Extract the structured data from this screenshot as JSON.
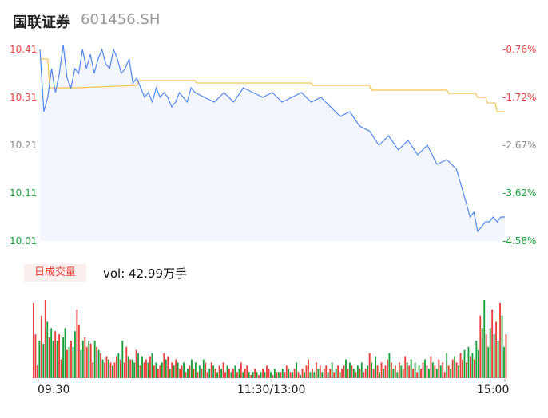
{
  "header": {
    "name": "国联证券",
    "code": "601456.SH"
  },
  "volume_tab": {
    "label": "日成交量"
  },
  "volume_readout": "vol: 42.99万手",
  "colors": {
    "up": "#e8413d",
    "down": "#1aa33d",
    "price_line": "#4f86ef",
    "avg_line": "#f3c34f",
    "neutral": "#8a8a8a"
  },
  "chart_data": [
    {
      "type": "line",
      "title": "",
      "x_tick_labels": [
        "09:30",
        "11:30/13:00",
        "15:00"
      ],
      "y_tick_labels": [
        "10.41",
        "10.31",
        "10.21",
        "10.11",
        "10.01"
      ],
      "y2_tick_labels": [
        "-0.76%",
        "-1.72%",
        "-2.67%",
        "-3.62%",
        "-4.58%"
      ],
      "ylim": [
        10.01,
        10.41
      ],
      "xlim": [
        0,
        240
      ],
      "series": [
        {
          "role": "price",
          "x": [
            0,
            2,
            4,
            6,
            8,
            10,
            12,
            14,
            16,
            18,
            20,
            22,
            24,
            26,
            28,
            30,
            32,
            34,
            36,
            38,
            40,
            42,
            44,
            46,
            48,
            50,
            52,
            54,
            56,
            58,
            60,
            62,
            64,
            66,
            68,
            70,
            72,
            74,
            76,
            78,
            80,
            85,
            90,
            95,
            100,
            105,
            110,
            115,
            120,
            125,
            130,
            135,
            140,
            145,
            150,
            155,
            160,
            165,
            170,
            175,
            180,
            185,
            190,
            195,
            200,
            205,
            210,
            215,
            220,
            222,
            224,
            226,
            228,
            230,
            232,
            234,
            236,
            238,
            240
          ],
          "values": [
            10.41,
            10.28,
            10.31,
            10.37,
            10.32,
            10.36,
            10.42,
            10.35,
            10.33,
            10.37,
            10.36,
            10.41,
            10.37,
            10.4,
            10.36,
            10.39,
            10.41,
            10.38,
            10.37,
            10.41,
            10.39,
            10.36,
            10.37,
            10.39,
            10.34,
            10.35,
            10.33,
            10.31,
            10.32,
            10.3,
            10.33,
            10.31,
            10.32,
            10.31,
            10.29,
            10.3,
            10.32,
            10.31,
            10.3,
            10.33,
            10.32,
            10.31,
            10.3,
            10.32,
            10.3,
            10.33,
            10.32,
            10.31,
            10.32,
            10.3,
            10.31,
            10.32,
            10.3,
            10.31,
            10.29,
            10.27,
            10.28,
            10.25,
            10.24,
            10.21,
            10.23,
            10.2,
            10.22,
            10.19,
            10.21,
            10.17,
            10.18,
            10.16,
            10.09,
            10.06,
            10.07,
            10.03,
            10.04,
            10.05,
            10.05,
            10.06,
            10.05,
            10.06,
            10.06
          ]
        },
        {
          "role": "average",
          "x": [
            0,
            4,
            5,
            20,
            50,
            51,
            80,
            81,
            140,
            141,
            170,
            171,
            210,
            211,
            225,
            226,
            230,
            231,
            235,
            236,
            240
          ],
          "values": [
            10.39,
            10.39,
            10.33,
            10.33,
            10.335,
            10.345,
            10.345,
            10.34,
            10.34,
            10.335,
            10.335,
            10.325,
            10.325,
            10.318,
            10.318,
            10.31,
            10.31,
            10.298,
            10.298,
            10.28,
            10.28
          ]
        }
      ]
    },
    {
      "type": "bar",
      "title": "",
      "unit": "万手",
      "values": [
        24,
        14,
        4,
        12,
        20,
        11,
        25,
        18,
        13,
        16,
        12,
        15,
        12,
        14,
        6,
        13,
        16,
        9,
        10,
        12,
        10,
        15,
        22,
        17,
        9,
        12,
        13,
        10,
        12,
        11,
        5,
        12,
        10,
        9,
        8,
        6,
        5,
        7,
        6,
        5,
        4,
        5,
        7,
        8,
        6,
        12,
        5,
        10,
        7,
        6,
        6,
        5,
        9,
        8,
        4,
        7,
        5,
        6,
        5,
        7,
        8,
        4,
        5,
        3,
        4,
        5,
        8,
        6,
        7,
        3,
        5,
        4,
        6,
        5,
        3,
        4,
        5,
        2,
        3,
        4,
        6,
        3,
        5,
        2,
        4,
        3,
        6,
        5,
        2,
        3,
        5,
        4,
        3,
        2,
        4,
        3,
        5,
        2,
        4,
        3,
        2,
        3,
        4,
        2,
        3,
        5,
        2,
        3,
        4,
        2,
        1,
        2,
        3,
        2,
        1,
        2,
        3,
        2,
        4,
        3,
        2,
        1,
        3,
        2,
        2,
        2,
        3,
        2,
        4,
        3,
        2,
        2,
        3,
        5,
        2,
        1,
        3,
        2,
        4,
        6,
        2,
        3,
        2,
        5,
        3,
        4,
        2,
        3,
        4,
        2,
        3,
        5,
        2,
        3,
        4,
        2,
        3,
        4,
        6,
        3,
        5,
        4,
        3,
        2,
        4,
        3,
        5,
        2,
        3,
        4,
        8,
        5,
        3,
        7,
        4,
        2,
        5,
        3,
        4,
        6,
        8,
        5,
        3,
        4,
        2,
        5,
        4,
        3,
        7,
        5,
        4,
        6,
        3,
        5,
        2,
        4,
        3,
        5,
        6,
        4,
        3,
        7,
        5,
        4,
        3,
        6,
        4,
        5,
        2,
        8,
        4,
        3,
        6,
        7,
        5,
        4,
        8,
        6,
        9,
        5,
        10,
        7,
        8,
        6,
        12,
        9,
        20,
        16,
        25,
        14,
        10,
        16,
        22,
        14,
        18,
        12,
        24,
        20,
        10,
        14
      ],
      "colors": [
        "up",
        "up",
        "up",
        "down",
        "up",
        "down",
        "up",
        "down",
        "up",
        "down",
        "down",
        "up",
        "down",
        "up",
        "up",
        "down",
        "down",
        "up",
        "down",
        "up",
        "down",
        "down",
        "up",
        "up",
        "down",
        "down",
        "up",
        "up",
        "down",
        "up",
        "up",
        "down",
        "up",
        "down",
        "up",
        "down",
        "up",
        "up",
        "down",
        "up",
        "down",
        "up",
        "up",
        "down",
        "up",
        "down",
        "up",
        "up",
        "down",
        "up",
        "down",
        "down",
        "up",
        "down",
        "up",
        "down",
        "up",
        "up",
        "down",
        "up",
        "down",
        "up",
        "down",
        "up",
        "up",
        "down",
        "up",
        "down",
        "up",
        "down",
        "up",
        "down",
        "up",
        "down",
        "up",
        "up",
        "down",
        "up",
        "down",
        "up",
        "down",
        "up",
        "down",
        "up",
        "down",
        "up",
        "down",
        "up",
        "up",
        "down",
        "up",
        "down",
        "up",
        "down",
        "up",
        "down",
        "up",
        "up",
        "down",
        "up",
        "down",
        "up",
        "down",
        "up",
        "down",
        "up",
        "down",
        "up",
        "up",
        "down",
        "up",
        "down",
        "up",
        "down",
        "up",
        "down",
        "up",
        "down",
        "up",
        "up",
        "down",
        "up",
        "down",
        "up",
        "down",
        "up",
        "down",
        "up",
        "up",
        "down",
        "up",
        "down",
        "up",
        "down",
        "up",
        "down",
        "up",
        "down",
        "up",
        "up",
        "down",
        "up",
        "down",
        "up",
        "down",
        "up",
        "down",
        "up",
        "up",
        "down",
        "up",
        "down",
        "up",
        "down",
        "up",
        "down",
        "up",
        "up",
        "down",
        "up",
        "down",
        "up",
        "down",
        "up",
        "down",
        "up",
        "down",
        "up",
        "up",
        "down",
        "up",
        "down",
        "up",
        "down",
        "up",
        "down",
        "up",
        "down",
        "up",
        "up",
        "down",
        "up",
        "down",
        "up",
        "down",
        "up",
        "down",
        "up",
        "up",
        "down",
        "up",
        "down",
        "up",
        "down",
        "up",
        "down",
        "up",
        "up",
        "down",
        "up",
        "down",
        "up",
        "down",
        "up",
        "down",
        "up",
        "down",
        "up",
        "up",
        "down",
        "up",
        "down",
        "up",
        "down",
        "up",
        "down",
        "up",
        "up",
        "down",
        "up",
        "down",
        "up",
        "down",
        "up",
        "down",
        "down",
        "up",
        "down",
        "down",
        "up",
        "down",
        "down",
        "up",
        "down",
        "up",
        "down",
        "up",
        "down",
        "down",
        "up",
        "up"
      ]
    }
  ]
}
